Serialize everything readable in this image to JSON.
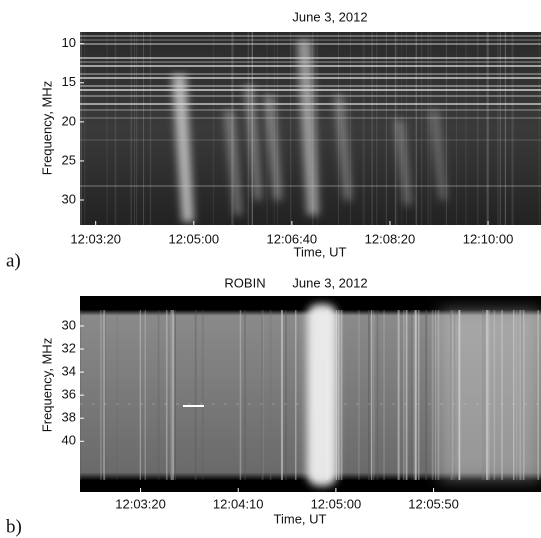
{
  "chart_data": [
    {
      "type": "spectrogram",
      "panel_label": "a)",
      "title": "June 3, 2012",
      "xlabel": "Time, UT",
      "ylabel": "Frequency, MHz",
      "xlim": [
        43384,
        43854
      ],
      "xticks": [
        {
          "value": 43400,
          "label": "12:03:20"
        },
        {
          "value": 43500,
          "label": "12:05:00"
        },
        {
          "value": 43600,
          "label": "12:06:40"
        },
        {
          "value": 43700,
          "label": "12:08:20"
        },
        {
          "value": 43800,
          "label": "12:10:00"
        }
      ],
      "ylim": [
        8.5,
        33.2
      ],
      "yticks": [
        10,
        15,
        20,
        25,
        30
      ]
    },
    {
      "type": "spectrogram",
      "panel_label": "b)",
      "instrument": "ROBIN",
      "title": "June 3, 2012",
      "xlabel": "Time, UT",
      "ylabel": "Frequency, MHz",
      "xlim": [
        43369,
        43605
      ],
      "xticks": [
        {
          "value": 43400,
          "label": "12:03:20"
        },
        {
          "value": 43450,
          "label": "12:04:10"
        },
        {
          "value": 43500,
          "label": "12:05:00"
        },
        {
          "value": 43550,
          "label": "12:05:50"
        }
      ],
      "ylim": [
        27.4,
        44.4
      ],
      "yticks": [
        30,
        32,
        34,
        36,
        38,
        40
      ]
    }
  ]
}
